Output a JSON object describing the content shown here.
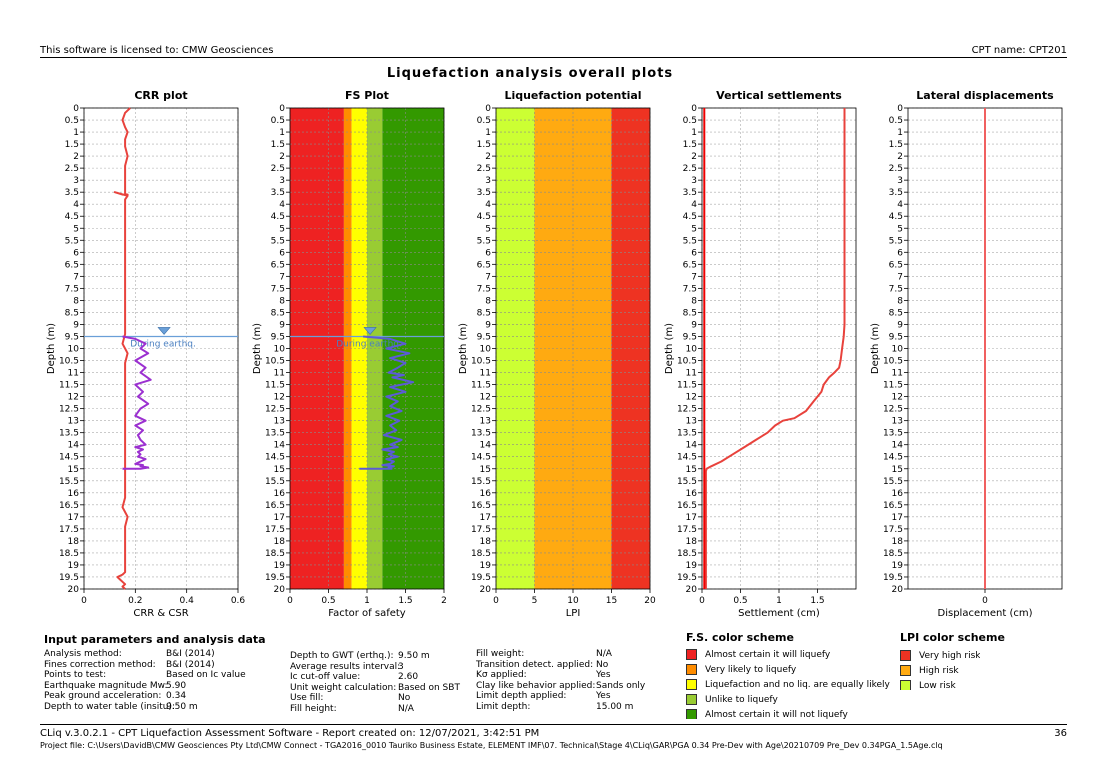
{
  "header": {
    "license": "This software is licensed to: CMW Geosciences",
    "cpt_name": "CPT name: CPT201",
    "title": "Liquefaction analysis overall plots"
  },
  "chart_data": [
    {
      "type": "line",
      "title": "CRR plot",
      "xlabel": "CRR & CSR",
      "ylabel": "Depth (m)",
      "xlim": [
        0,
        0.6
      ],
      "ylim": [
        20,
        0
      ],
      "xticks": [
        "0",
        "0.2",
        "0.4",
        "0.6"
      ],
      "gwt_label": "During earthq.",
      "gwt_depth": 9.5,
      "series": [
        {
          "color": "#e8423c",
          "x": [
            0.18,
            0.16,
            0.15,
            0.16,
            0.17,
            0.16,
            0.16,
            0.17,
            0.16,
            0.16,
            0.16,
            0.16,
            0.16,
            0.16,
            0.16,
            0.16,
            0.16,
            0.16,
            0.16,
            0.17,
            0.15,
            0.12,
            0.17,
            0.16,
            0.16,
            0.16,
            0.16,
            0.16,
            0.16,
            0.16,
            0.16,
            0.16,
            0.16,
            0.16,
            0.16,
            0.16,
            0.16,
            0.16,
            0.16,
            0.15,
            0.17,
            0.16,
            0.16,
            0.16,
            0.16,
            0.16,
            0.16,
            0.16,
            0.16,
            0.16,
            0.16,
            0.16,
            0.16,
            0.16,
            0.16,
            0.16,
            0.15,
            0.17,
            0.16,
            0.16,
            0.16,
            0.16,
            0.16,
            0.16,
            0.16,
            0.16,
            0.16,
            0.16,
            0.16,
            0.16,
            0.16,
            0.16,
            0.16,
            0.16,
            0.15,
            0.13,
            0.14,
            0.15,
            0.16,
            0.15,
            0.16,
            0.16
          ],
          "y": [
            0,
            0.2,
            0.5,
            0.8,
            1.0,
            1.3,
            1.6,
            2.0,
            2.4,
            2.8,
            3.0,
            3.1,
            3.2,
            3.3,
            3.4,
            3.45,
            3.5,
            3.55,
            3.58,
            3.6,
            3.6,
            3.5,
            3.65,
            3.8,
            4.0,
            4.3,
            4.6,
            5.0,
            5.4,
            5.8,
            6.2,
            6.6,
            7.0,
            7.4,
            7.8,
            8.2,
            8.6,
            9.0,
            9.4,
            9.8,
            10.2,
            10.6,
            11.0,
            11.4,
            11.8,
            12.2,
            12.6,
            13.0,
            13.4,
            13.8,
            14.2,
            14.6,
            15.0,
            15.4,
            15.8,
            16.2,
            16.6,
            17.0,
            17.4,
            17.8,
            18.0,
            18.1,
            18.2,
            18.3,
            18.4,
            18.5,
            18.6,
            18.7,
            18.8,
            18.9,
            19.0,
            19.1,
            19.2,
            19.3,
            19.4,
            19.5,
            19.6,
            19.7,
            19.8,
            19.9,
            20.0,
            20.0
          ]
        },
        {
          "color": "#9b30d0",
          "x": [
            0.15,
            0.2,
            0.24,
            0.22,
            0.25,
            0.2,
            0.24,
            0.22,
            0.26,
            0.2,
            0.23,
            0.21,
            0.25,
            0.22,
            0.2,
            0.24,
            0.2,
            0.23,
            0.21,
            0.22,
            0.24,
            0.2,
            0.23,
            0.21,
            0.22,
            0.21,
            0.24,
            0.22,
            0.2,
            0.23,
            0.22,
            0.25,
            0.22,
            0.15
          ],
          "y": [
            9.5,
            9.6,
            9.8,
            10.0,
            10.2,
            10.5,
            10.8,
            11.0,
            11.3,
            11.5,
            11.8,
            12.0,
            12.3,
            12.5,
            12.8,
            13.0,
            13.2,
            13.4,
            13.6,
            13.8,
            14.0,
            14.1,
            14.2,
            14.3,
            14.4,
            14.5,
            14.6,
            14.7,
            14.8,
            14.85,
            14.9,
            14.95,
            15.0,
            15.0
          ]
        }
      ]
    },
    {
      "type": "line",
      "title": "FS Plot",
      "xlabel": "Factor of safety",
      "ylabel": "Depth (m)",
      "xlim": [
        0,
        2
      ],
      "ylim": [
        20,
        0
      ],
      "xticks": [
        "0",
        "0.5",
        "1",
        "1.5",
        "2"
      ],
      "gwt_label": "During earthq.",
      "gwt_depth": 9.5,
      "bands": [
        {
          "from": 0,
          "to": 0.7,
          "color": "#ee2222"
        },
        {
          "from": 0.7,
          "to": 0.8,
          "color": "#ff8c00"
        },
        {
          "from": 0.8,
          "to": 1.0,
          "color": "#ffff00"
        },
        {
          "from": 1.0,
          "to": 1.2,
          "color": "#99cc33"
        },
        {
          "from": 1.2,
          "to": 2.0,
          "color": "#339900"
        }
      ],
      "series": [
        {
          "color": "#5b5bd6",
          "x": [
            0.95,
            1.3,
            1.5,
            1.25,
            1.55,
            1.3,
            1.5,
            1.4,
            1.28,
            1.48,
            1.33,
            1.6,
            1.3,
            1.5,
            1.25,
            1.4,
            1.3,
            1.45,
            1.25,
            1.42,
            1.3,
            1.38,
            1.22,
            1.45,
            1.3,
            1.4,
            1.2,
            1.35,
            1.28,
            1.4,
            1.25,
            1.35,
            1.3,
            1.2,
            1.35,
            1.28,
            1.3,
            1.32,
            1.1,
            0.9
          ],
          "y": [
            9.5,
            9.6,
            9.8,
            10.0,
            10.2,
            10.4,
            10.6,
            10.8,
            11.0,
            11.1,
            11.2,
            11.4,
            11.6,
            11.8,
            12.0,
            12.2,
            12.4,
            12.6,
            12.8,
            13.0,
            13.2,
            13.4,
            13.6,
            13.8,
            14.0,
            14.1,
            14.2,
            14.3,
            14.4,
            14.5,
            14.6,
            14.7,
            14.8,
            14.85,
            14.9,
            14.95,
            15.0,
            15.0,
            15.0,
            15.0
          ]
        }
      ]
    },
    {
      "type": "area",
      "title": "Liquefaction potential",
      "xlabel": "LPI",
      "ylabel": "Depth (m)",
      "xlim": [
        0,
        20
      ],
      "ylim": [
        20,
        0
      ],
      "xticks": [
        "0",
        "5",
        "10",
        "15",
        "20"
      ],
      "bands": [
        {
          "from": 0,
          "to": 5,
          "color": "#ccff33"
        },
        {
          "from": 5,
          "to": 15,
          "color": "#ffaa11"
        },
        {
          "from": 15,
          "to": 20,
          "color": "#ee3322"
        }
      ]
    },
    {
      "type": "line",
      "title": "Vertical settlements",
      "xlabel": "Settlement (cm)",
      "ylabel": "Depth (m)",
      "xlim": [
        0,
        2
      ],
      "ylim": [
        20,
        0
      ],
      "xticks": [
        "0",
        "0.5",
        "1",
        "1.5"
      ],
      "series": [
        {
          "color": "#e8423c",
          "x": [
            1.85,
            1.85,
            1.85,
            1.84,
            1.82,
            1.8,
            1.78,
            1.72,
            1.65,
            1.58,
            1.55,
            1.5,
            1.45,
            1.35,
            1.2,
            1.05,
            0.95,
            0.85,
            0.7,
            0.55,
            0.4,
            0.25,
            0.12,
            0.06,
            0.05,
            0.05
          ],
          "y": [
            0,
            5,
            9.0,
            9.5,
            10.0,
            10.5,
            10.8,
            11.0,
            11.2,
            11.5,
            11.8,
            12.0,
            12.2,
            12.6,
            12.9,
            13.0,
            13.2,
            13.5,
            13.8,
            14.1,
            14.4,
            14.7,
            14.9,
            15.0,
            15.1,
            20.0
          ]
        },
        {
          "color": "#ee0000",
          "x": [
            0.03,
            0.03
          ],
          "y": [
            0,
            20
          ]
        }
      ]
    },
    {
      "type": "line",
      "title": "Lateral displacements",
      "xlabel": "Displacement (cm)",
      "ylabel": "Depth (m)",
      "xlim": [
        -1,
        1
      ],
      "ylim": [
        20,
        0
      ],
      "xticks": [
        "0"
      ],
      "series": [
        {
          "color": "#f06060",
          "x": [
            0,
            0
          ],
          "y": [
            0,
            20
          ]
        }
      ]
    }
  ],
  "y_ticks": [
    "0",
    "0.5",
    "1",
    "1.5",
    "2",
    "2.5",
    "3",
    "3.5",
    "4",
    "4.5",
    "5",
    "5.5",
    "6",
    "6.5",
    "7",
    "7.5",
    "8",
    "8.5",
    "9",
    "9.5",
    "10",
    "10.5",
    "11",
    "11.5",
    "12",
    "12.5",
    "13",
    "13.5",
    "14",
    "14.5",
    "15",
    "15.5",
    "16",
    "16.5",
    "17",
    "17.5",
    "18",
    "18.5",
    "19",
    "19.5",
    "20"
  ],
  "input_params": {
    "title": "Input parameters and analysis data",
    "col1": [
      {
        "k": "Analysis method:",
        "v": "B&I (2014)"
      },
      {
        "k": "Fines correction method:",
        "v": "B&I (2014)"
      },
      {
        "k": "Points to test:",
        "v": "Based on Ic value"
      },
      {
        "k": "Earthquake magnitude Mw:",
        "v": "5.90"
      },
      {
        "k": "Peak ground acceleration:",
        "v": "0.34"
      },
      {
        "k": "Depth to water table (insitu):",
        "v": "9.50 m"
      }
    ],
    "col2": [
      {
        "k": "Depth to GWT (erthq.):",
        "v": "9.50 m"
      },
      {
        "k": "Average results interval:",
        "v": "3"
      },
      {
        "k": "Ic cut-off value:",
        "v": "2.60"
      },
      {
        "k": "Unit weight calculation:",
        "v": "Based on SBT"
      },
      {
        "k": "Use fill:",
        "v": "No"
      },
      {
        "k": "Fill height:",
        "v": "N/A"
      }
    ],
    "col3": [
      {
        "k": "Fill weight:",
        "v": "N/A"
      },
      {
        "k": "Transition detect. applied:",
        "v": "No"
      },
      {
        "k": "Kσ applied:",
        "v": "Yes"
      },
      {
        "k": "Clay like behavior applied:",
        "v": "Sands only"
      },
      {
        "k": "Limit depth applied:",
        "v": "Yes"
      },
      {
        "k": "Limit depth:",
        "v": "15.00 m"
      }
    ]
  },
  "fs_scheme": {
    "title": "F.S. color scheme",
    "items": [
      {
        "label": "Almost certain it will liquefy",
        "color": "#ee2222"
      },
      {
        "label": "Very likely to liquefy",
        "color": "#ff8c00"
      },
      {
        "label": "Liquefaction and no liq. are equally likely",
        "color": "#ffff00"
      },
      {
        "label": "Unlike to liquefy",
        "color": "#99cc33"
      },
      {
        "label": "Almost certain it will not liquefy",
        "color": "#339900"
      }
    ]
  },
  "lpi_scheme": {
    "title": "LPI color scheme",
    "items": [
      {
        "label": "Very high risk",
        "color": "#ee3322"
      },
      {
        "label": "High risk",
        "color": "#ffaa11"
      },
      {
        "label": "Low risk",
        "color": "#ccff33"
      }
    ]
  },
  "footer": {
    "software": "CLiq v.3.0.2.1 - CPT Liquefaction Assessment Software - Report created on: 12/07/2021, 3:42:51 PM",
    "page": "36",
    "project": "Project file: C:\\Users\\DavidB\\CMW Geosciences Pty Ltd\\CMW Connect - TGA2016_0010 Tauriko Business Estate, ELEMENT IMF\\07. Technical\\Stage 4\\CLiq\\GAR\\PGA 0.34 Pre-Dev with Age\\20210709 Pre_Dev 0.34PGA_1.5Age.clq"
  }
}
